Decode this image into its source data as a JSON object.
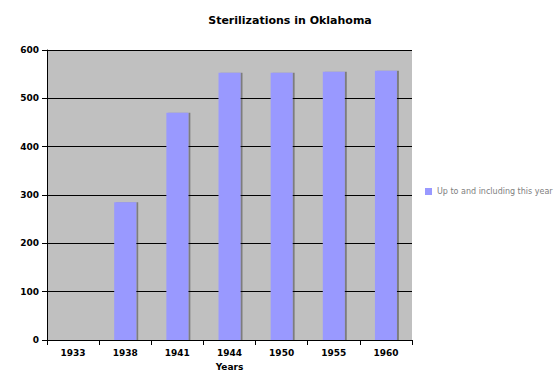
{
  "chart_data": {
    "type": "bar",
    "title": "Sterilizations in Oklahoma",
    "x_label": "Years",
    "categories": [
      "1933",
      "1938",
      "1941",
      "1944",
      "1950",
      "1955",
      "1960"
    ],
    "series": [
      {
        "name": "Up to and including this year",
        "color": "#9999ff",
        "values": [
          0,
          285,
          470,
          553,
          553,
          555,
          557
        ]
      }
    ],
    "ylim": [
      0,
      600
    ],
    "yticks": [
      0,
      100,
      200,
      300,
      400,
      500,
      600
    ],
    "grid": true,
    "legend": "right"
  }
}
